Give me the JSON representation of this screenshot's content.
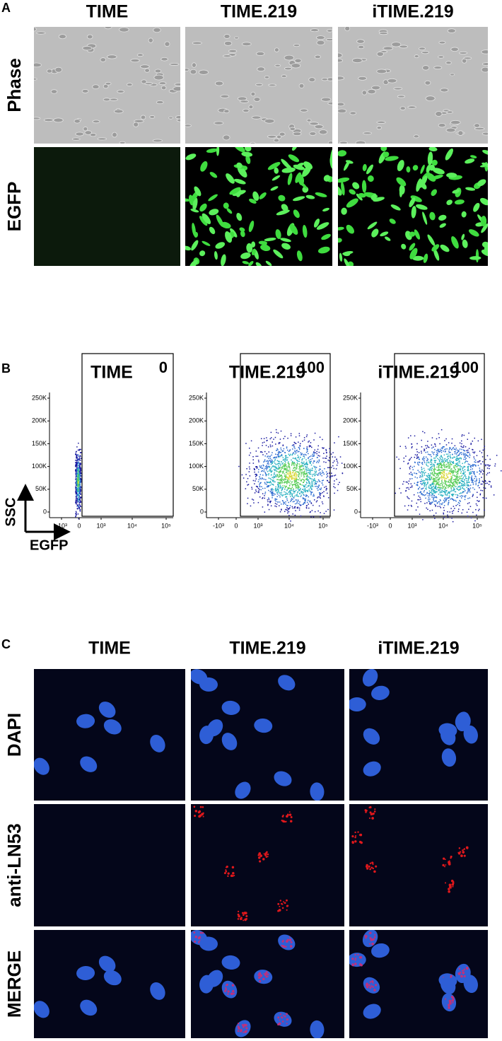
{
  "panels": {
    "A": {
      "label": "A",
      "columns": [
        "TIME",
        "TIME.219",
        "iTIME.219"
      ],
      "rows": [
        "Phase",
        "EGFP"
      ]
    },
    "B": {
      "label": "B",
      "columns": [
        "TIME",
        "TIME.219",
        "iTIME.219"
      ],
      "gates": [
        "0",
        "100",
        "100"
      ],
      "yticks": [
        "0",
        "50K",
        "100K",
        "150K",
        "200K",
        "250K"
      ],
      "xticks": [
        "-10³",
        "0",
        "10³",
        "10⁴",
        "10⁵"
      ],
      "ylabel": "SSC",
      "xlabel": "EGFP"
    },
    "C": {
      "label": "C",
      "columns": [
        "TIME",
        "TIME.219",
        "iTIME.219"
      ],
      "rows": [
        "DAPI",
        "anti-LN53",
        "MERGE"
      ]
    }
  }
}
